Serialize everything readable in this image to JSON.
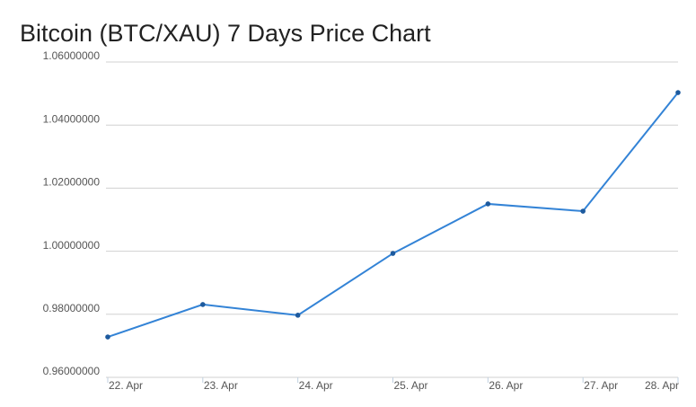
{
  "chart_data": {
    "type": "line",
    "title": "Bitcoin (BTC/XAU) 7 Days Price Chart",
    "categories": [
      "22. Apr",
      "23. Apr",
      "24. Apr",
      "25. Apr",
      "26. Apr",
      "27. Apr",
      "28. Apr"
    ],
    "values": [
      0.9728,
      0.9831,
      0.9797,
      0.9993,
      1.015,
      1.0127,
      1.0503
    ],
    "color": "#3383d6",
    "marker_color": "#1d5a9e",
    "ylim": [
      0.96,
      1.06
    ],
    "yticks": [
      {
        "value": 0.96,
        "label": "0.96000000"
      },
      {
        "value": 0.98,
        "label": "0.98000000"
      },
      {
        "value": 1.0,
        "label": "1.00000000"
      },
      {
        "value": 1.02,
        "label": "1.02000000"
      },
      {
        "value": 1.04,
        "label": "1.04000000"
      },
      {
        "value": 1.06,
        "label": "1.06000000"
      }
    ],
    "grid": true
  }
}
